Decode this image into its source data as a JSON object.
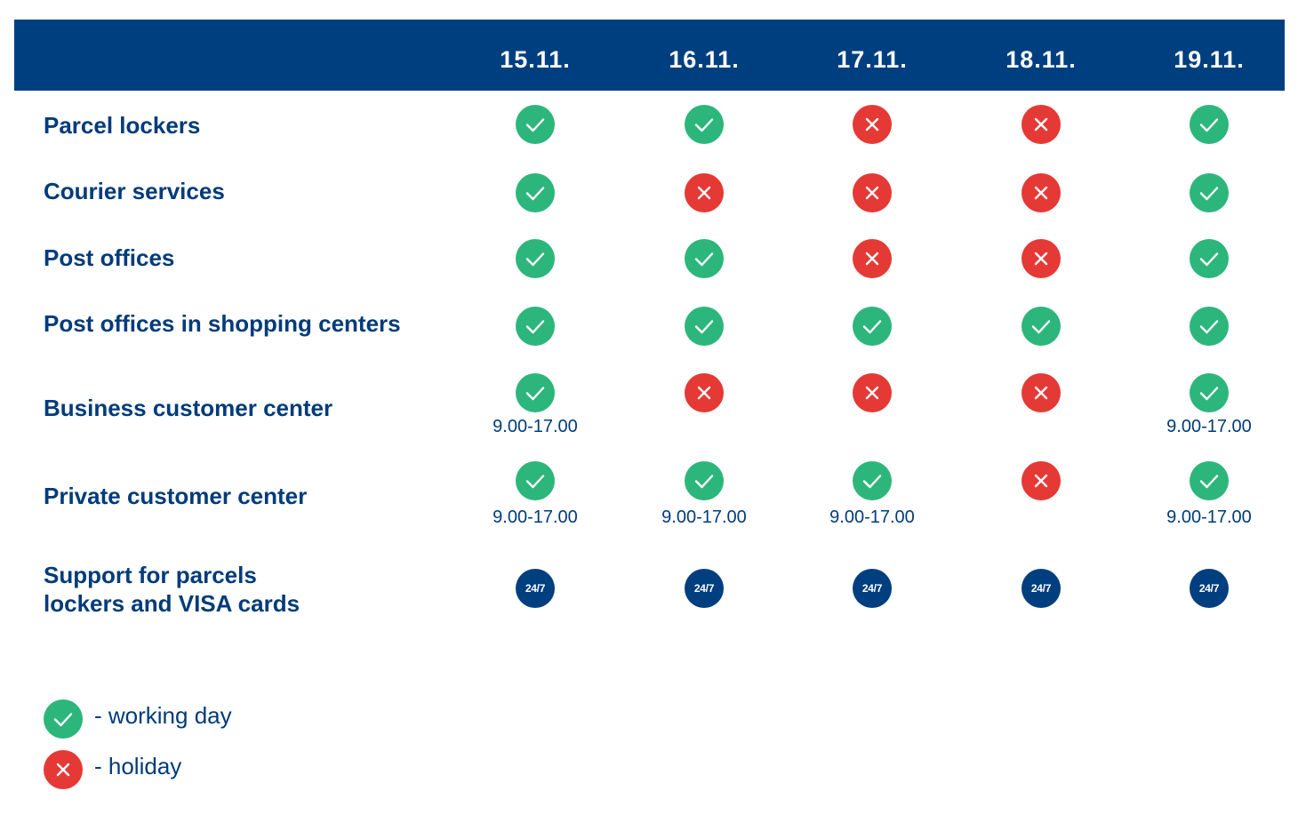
{
  "dates": [
    "15.11.",
    "16.11.",
    "17.11.",
    "18.11.",
    "19.11."
  ],
  "rows": [
    {
      "label_lines": [
        "Parcel lockers"
      ],
      "cells": [
        {
          "status": "check",
          "hours": ""
        },
        {
          "status": "check",
          "hours": ""
        },
        {
          "status": "cross",
          "hours": ""
        },
        {
          "status": "cross",
          "hours": ""
        },
        {
          "status": "check",
          "hours": ""
        }
      ]
    },
    {
      "label_lines": [
        "Courier services"
      ],
      "cells": [
        {
          "status": "check",
          "hours": ""
        },
        {
          "status": "cross",
          "hours": ""
        },
        {
          "status": "cross",
          "hours": ""
        },
        {
          "status": "cross",
          "hours": ""
        },
        {
          "status": "check",
          "hours": ""
        }
      ]
    },
    {
      "label_lines": [
        "Post offices"
      ],
      "cells": [
        {
          "status": "check",
          "hours": ""
        },
        {
          "status": "check",
          "hours": ""
        },
        {
          "status": "cross",
          "hours": ""
        },
        {
          "status": "cross",
          "hours": ""
        },
        {
          "status": "check",
          "hours": ""
        }
      ]
    },
    {
      "label_lines": [
        "Post offices in shopping centers"
      ],
      "cells": [
        {
          "status": "check",
          "hours": ""
        },
        {
          "status": "check",
          "hours": ""
        },
        {
          "status": "check",
          "hours": ""
        },
        {
          "status": "check",
          "hours": ""
        },
        {
          "status": "check",
          "hours": ""
        }
      ]
    },
    {
      "label_lines": [
        "Business customer center"
      ],
      "cells": [
        {
          "status": "check",
          "hours": "9.00-17.00"
        },
        {
          "status": "cross",
          "hours": ""
        },
        {
          "status": "cross",
          "hours": ""
        },
        {
          "status": "cross",
          "hours": ""
        },
        {
          "status": "check",
          "hours": "9.00-17.00"
        }
      ]
    },
    {
      "label_lines": [
        "Private customer center"
      ],
      "cells": [
        {
          "status": "check",
          "hours": "9.00-17.00"
        },
        {
          "status": "check",
          "hours": "9.00-17.00"
        },
        {
          "status": "check",
          "hours": "9.00-17.00"
        },
        {
          "status": "cross",
          "hours": ""
        },
        {
          "status": "check",
          "hours": "9.00-17.00"
        }
      ]
    },
    {
      "label_lines": [
        "Support for parcels",
        "lockers and VISA cards"
      ],
      "cells": [
        {
          "status": "allday",
          "hours": ""
        },
        {
          "status": "allday",
          "hours": ""
        },
        {
          "status": "allday",
          "hours": ""
        },
        {
          "status": "allday",
          "hours": ""
        },
        {
          "status": "allday",
          "hours": ""
        }
      ]
    }
  ],
  "badge_text": "24/7",
  "legend": [
    {
      "status": "check",
      "label": "- working day"
    },
    {
      "status": "cross",
      "label": "- holiday"
    }
  ],
  "icons": {
    "check": "check-icon",
    "cross": "cross-icon",
    "allday": "24-7-badge"
  },
  "colors": {
    "header": "#003f7f",
    "text": "#003b7a",
    "check": "#2db67c",
    "cross": "#e53935",
    "allday": "#003f7f"
  }
}
